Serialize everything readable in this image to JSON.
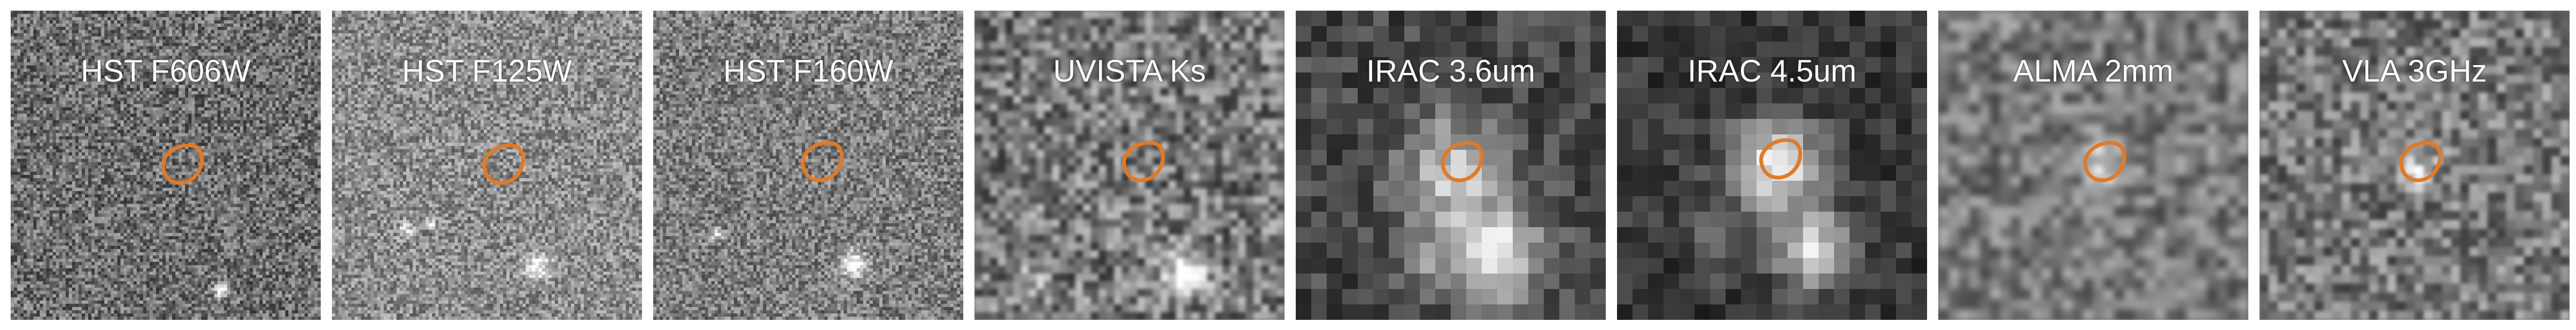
{
  "panels": [
    {
      "label": "HST F606W",
      "style": "fine-noise"
    },
    {
      "label": "HST F125W",
      "style": "fine-noise"
    },
    {
      "label": "HST F160W",
      "style": "fine-noise"
    },
    {
      "label": "UVISTA Ks",
      "style": "smooth-noise"
    },
    {
      "label": "IRAC 3.6um",
      "style": "pixelated"
    },
    {
      "label": "IRAC 4.5um",
      "style": "pixelated"
    },
    {
      "label": "ALMA 2mm",
      "style": "smooth-noise"
    },
    {
      "label": "VLA 3GHz",
      "style": "smooth-noise"
    }
  ],
  "colors": {
    "contour": "#e07a26",
    "background": "#ffffff"
  }
}
